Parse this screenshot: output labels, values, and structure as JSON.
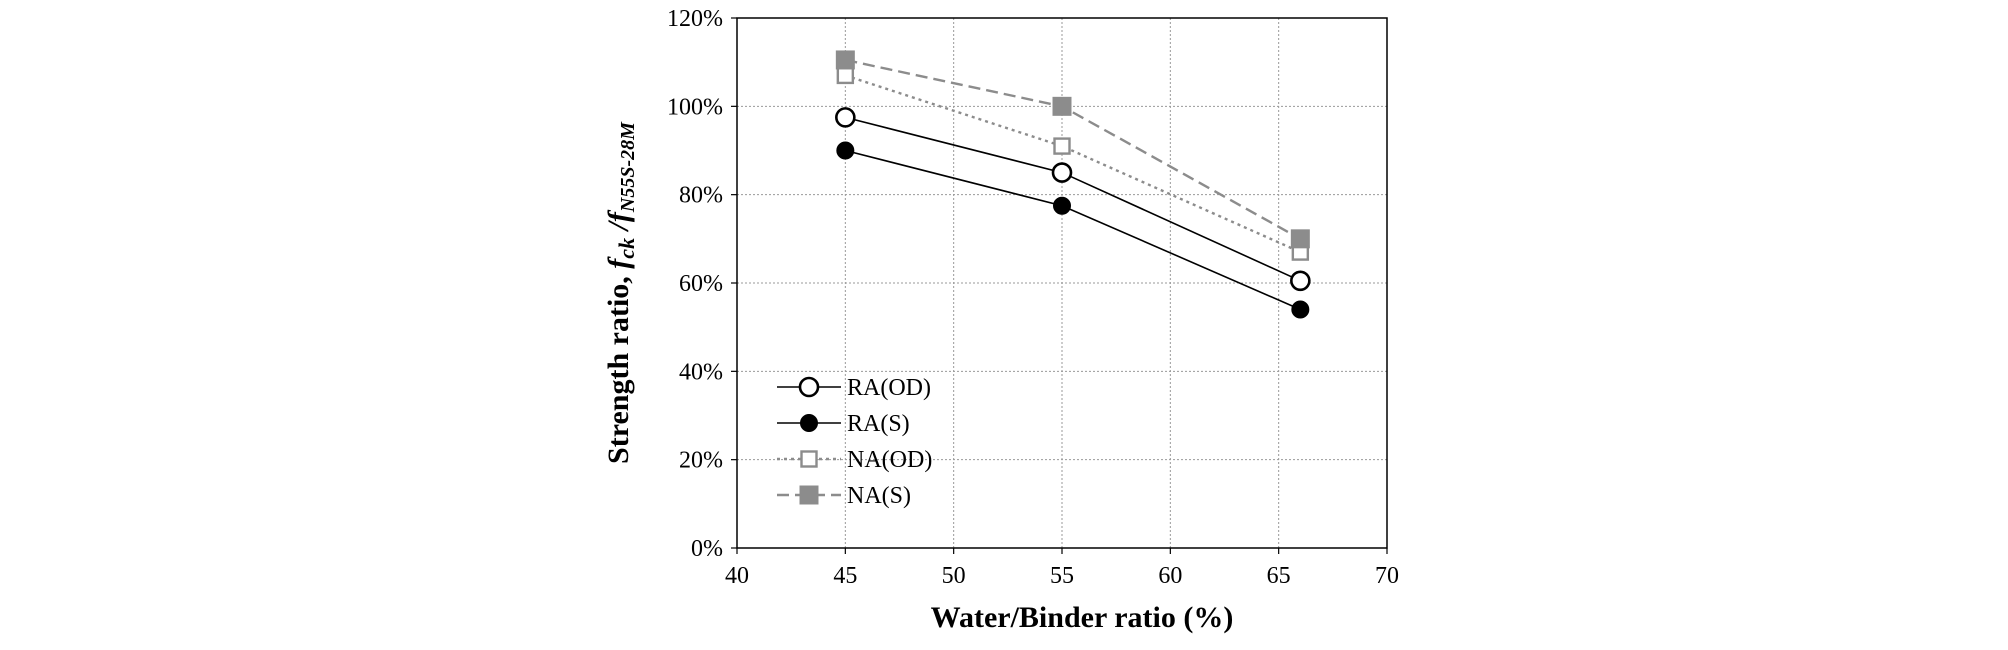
{
  "chart_data": {
    "type": "line",
    "xlabel": "Water/Binder ratio  (%)",
    "ylabel_main": "Strength ratio, ",
    "ylabel_f1": "f",
    "ylabel_f1_sub": "ck",
    "ylabel_slash": " /",
    "ylabel_f2": "f",
    "ylabel_f2_sub": "N55S-28M",
    "xlim": [
      40,
      70
    ],
    "ylim": [
      0,
      1.2
    ],
    "x_ticks": [
      "40",
      "45",
      "50",
      "55",
      "60",
      "65",
      "70"
    ],
    "y_ticks": [
      "0%",
      "20%",
      "40%",
      "60%",
      "80%",
      "100%",
      "120%"
    ],
    "grid": true,
    "legend_position": "lower-left",
    "x": [
      45,
      55,
      66
    ],
    "series": [
      {
        "name": "RA(OD)",
        "values": [
          0.975,
          0.85,
          0.605
        ],
        "color": "#000000",
        "marker": "circle-open",
        "line": "solid"
      },
      {
        "name": "RA(S)",
        "values": [
          0.9,
          0.775,
          0.54
        ],
        "color": "#000000",
        "marker": "circle-filled",
        "line": "solid"
      },
      {
        "name": "NA(OD)",
        "values": [
          1.07,
          0.91,
          0.67
        ],
        "color": "#8c8c8c",
        "marker": "square-open",
        "line": "dotted"
      },
      {
        "name": "NA(S)",
        "values": [
          1.105,
          1.0,
          0.7
        ],
        "color": "#8c8c8c",
        "marker": "square-filled",
        "line": "dashed"
      }
    ]
  }
}
